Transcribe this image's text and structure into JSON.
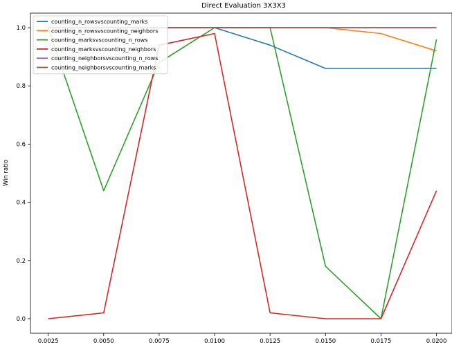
{
  "chart_data": {
    "type": "line",
    "title": "Direct Evaluation 3X3X3",
    "xlabel": "",
    "ylabel": "Win ratio",
    "x": [
      0.0025,
      0.005,
      0.0075,
      0.01,
      0.0125,
      0.015,
      0.0175,
      0.02
    ],
    "x_tick_labels": [
      "0.0025",
      "0.0050",
      "0.0075",
      "0.0100",
      "0.0125",
      "0.0150",
      "0.0175",
      "0.0200"
    ],
    "y_tick_labels": [
      "0.0",
      "0.2",
      "0.4",
      "0.6",
      "0.8",
      "1.0"
    ],
    "xlim": [
      0.0017,
      0.0207
    ],
    "ylim": [
      -0.05,
      1.05
    ],
    "grid": false,
    "legend_position": "top-left",
    "series": [
      {
        "name": "counting_n_rowsvscounting_marks",
        "color": "#1f77b4",
        "values": [
          1.0,
          1.0,
          1.0,
          1.0,
          0.94,
          0.86,
          0.86,
          0.86
        ]
      },
      {
        "name": "counting_n_rowsvscounting_neighbors",
        "color": "#ff7f0e",
        "values": [
          1.0,
          1.0,
          1.0,
          1.0,
          1.0,
          1.0,
          0.98,
          0.92
        ]
      },
      {
        "name": "counting_marksvscounting_n_rows",
        "color": "#2ca02c",
        "values": [
          1.0,
          0.44,
          0.88,
          1.0,
          1.0,
          0.18,
          0.0,
          0.96
        ]
      },
      {
        "name": "counting_marksvscounting_neighbors",
        "color": "#d62728",
        "values": [
          0.0,
          0.02,
          0.94,
          0.98,
          0.02,
          0.0,
          0.0,
          0.44
        ]
      },
      {
        "name": "counting_neighborsvscounting_n_rows",
        "color": "#9467bd",
        "values": [
          1.0,
          1.0,
          1.0,
          1.0,
          1.0,
          1.0,
          1.0,
          1.0
        ]
      },
      {
        "name": "counting_neighborsvscounting_marks",
        "color": "#8c564b",
        "values": [
          1.0,
          1.0,
          1.0,
          1.0,
          1.0,
          1.0,
          1.0,
          1.0
        ]
      }
    ]
  }
}
